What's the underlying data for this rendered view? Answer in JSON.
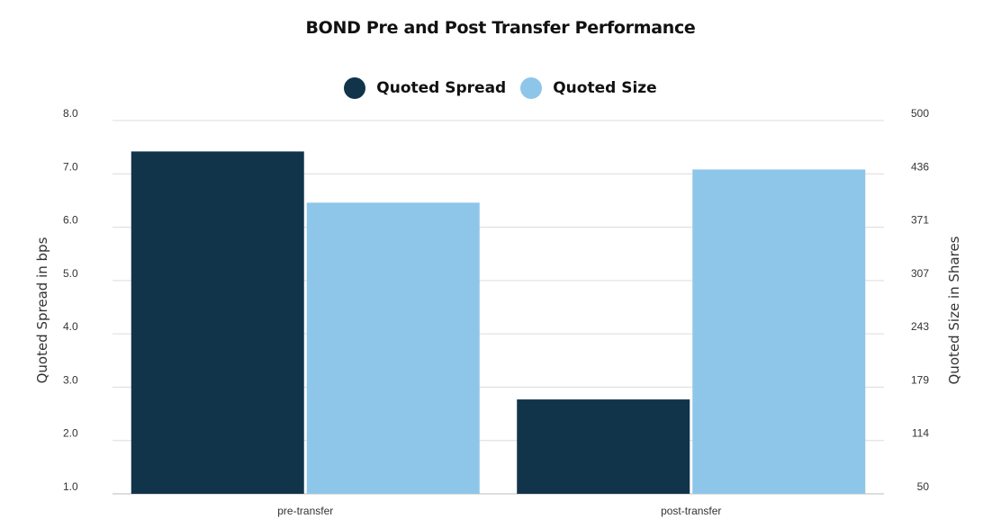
{
  "chart_data": {
    "type": "bar",
    "title": "BOND Pre and Post Transfer Performance",
    "categories": [
      "pre-transfer",
      "post-transfer"
    ],
    "series": [
      {
        "name": "Quoted Spread",
        "axis": "left",
        "color": "#12344a",
        "values": [
          7.42,
          2.77
        ]
      },
      {
        "name": "Quoted Size",
        "axis": "right",
        "color": "#8ec6e9",
        "values": [
          401,
          441
        ]
      }
    ],
    "ylabel": "Quoted Spread in bps",
    "ylabel_right": "Quoted Size in Shares",
    "ylim": [
      1.0,
      8.0
    ],
    "ylim_right": [
      50,
      500
    ],
    "yticks": [
      "1.0",
      "2.0",
      "3.0",
      "4.0",
      "5.0",
      "6.0",
      "7.0",
      "8.0"
    ],
    "yticks_right": [
      "50",
      "114",
      "179",
      "243",
      "307",
      "371",
      "436",
      "500"
    ],
    "grid": true,
    "legend": "top-center"
  }
}
